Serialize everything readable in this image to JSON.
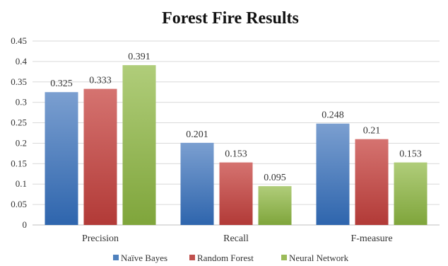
{
  "chart_data": {
    "type": "bar",
    "title": "Forest Fire Results",
    "categories": [
      "Precision",
      "Recall",
      "F-measure"
    ],
    "series": [
      {
        "name": "Naïve Bayes",
        "values": [
          0.325,
          0.201,
          0.248
        ],
        "labels": [
          "0.325",
          "0.201",
          "0.248"
        ],
        "color": "#4f81bd",
        "color_light": "#7b9fd0",
        "color_dark": "#2e65ad"
      },
      {
        "name": "Random Forest",
        "values": [
          0.333,
          0.153,
          0.21
        ],
        "labels": [
          "0.333",
          "0.153",
          "0.21"
        ],
        "color": "#c0504d",
        "color_light": "#d57370",
        "color_dark": "#b23a37"
      },
      {
        "name": "Neural Network",
        "values": [
          0.391,
          0.095,
          0.153
        ],
        "labels": [
          "0.391",
          "0.095",
          "0.153"
        ],
        "color": "#9bbb59",
        "color_light": "#b0cd7a",
        "color_dark": "#7fa53b"
      }
    ],
    "ylim": [
      0,
      0.45
    ],
    "yticks": [
      "0",
      "0.05",
      "0.1",
      "0.15",
      "0.2",
      "0.25",
      "0.3",
      "0.35",
      "0.4",
      "0.45"
    ],
    "grid": true,
    "legend_position": "bottom"
  }
}
